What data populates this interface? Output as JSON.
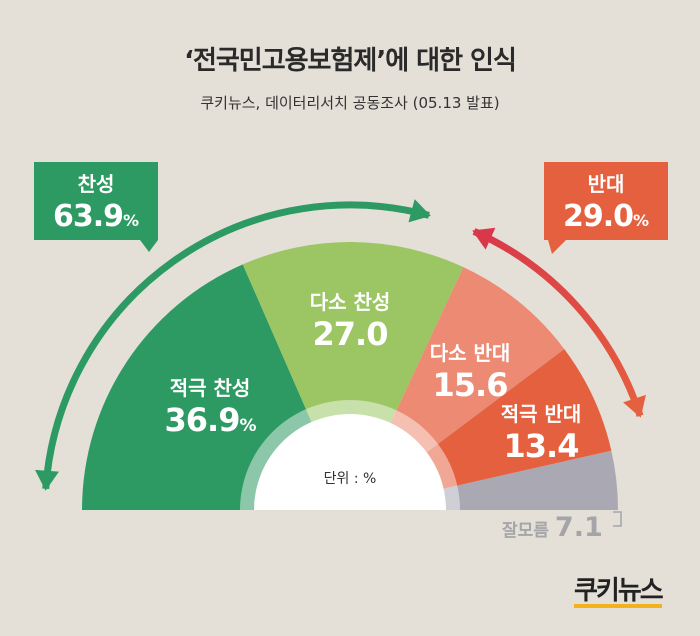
{
  "title": "‘전국민고용보험제’에 대한 인식",
  "subtitle": "쿠키뉴스, 데이터리서치 공동조사 (05.13 발표)",
  "unit_label": "단위 : %",
  "logo": "쿠키뉴스",
  "summary": {
    "favor": {
      "label": "찬성",
      "value": "63.9",
      "unit": "%"
    },
    "oppose": {
      "label": "반대",
      "value": "29.0",
      "unit": "%"
    }
  },
  "chart_data": {
    "type": "pie",
    "variant": "half-donut",
    "slices": [
      {
        "key": "strong_favor",
        "label": "적극 찬성",
        "value": 36.9,
        "display": "36.9",
        "unit": "%",
        "color": "#2e9a63"
      },
      {
        "key": "somewhat_favor",
        "label": "다소 찬성",
        "value": 27.0,
        "display": "27.0",
        "unit": "",
        "color": "#9cc664"
      },
      {
        "key": "somewhat_oppose",
        "label": "다소 반대",
        "value": 15.6,
        "display": "15.6",
        "unit": "",
        "color": "#ed8a74"
      },
      {
        "key": "strong_oppose",
        "label": "적극 반대",
        "value": 13.4,
        "display": "13.4",
        "unit": "",
        "color": "#e5603e"
      },
      {
        "key": "dont_know",
        "label": "잘모름",
        "value": 7.1,
        "display": "7.1",
        "unit": "",
        "color": "#a9a8b3"
      }
    ]
  },
  "colors": {
    "background": "#e4e0d8",
    "favor": "#2e9a63",
    "oppose": "#e5603e",
    "arrow_oppose_start": "#d9374a"
  }
}
